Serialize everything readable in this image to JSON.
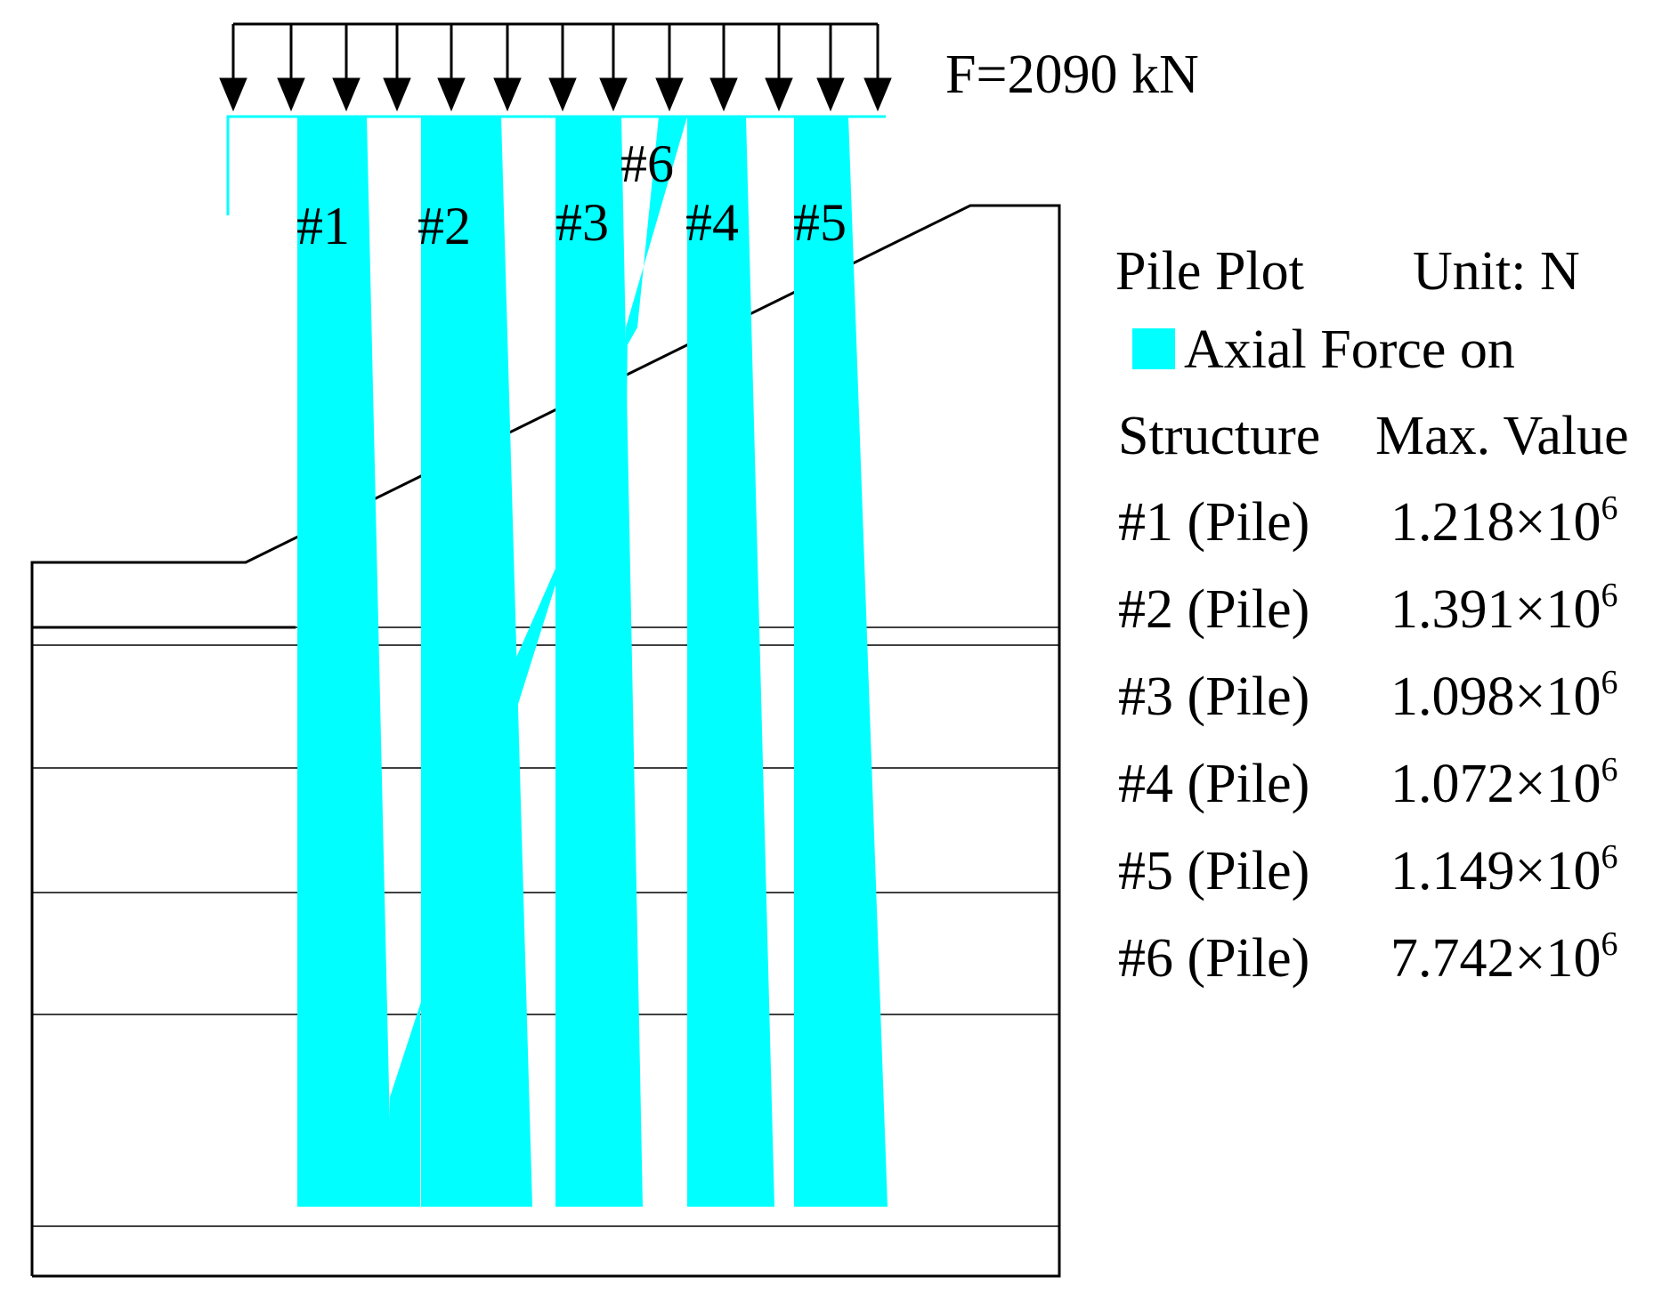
{
  "load": {
    "label": "F=2090 kN"
  },
  "piles": [
    {
      "id": "#1",
      "label": "#1"
    },
    {
      "id": "#2",
      "label": "#2"
    },
    {
      "id": "#3",
      "label": "#3"
    },
    {
      "id": "#4",
      "label": "#4"
    },
    {
      "id": "#5",
      "label": "#5"
    },
    {
      "id": "#6",
      "label": "#6"
    }
  ],
  "legend": {
    "title": "Pile Plot",
    "unit": "Unit: N",
    "item_label": "Axial Force on",
    "col_structure": "Structure",
    "col_max": "Max. Value",
    "swatch_color": "#00FFFF",
    "rows": [
      {
        "structure": "#1 (Pile)",
        "mantissa": "1.218×10",
        "exp": "6"
      },
      {
        "structure": "#2 (Pile)",
        "mantissa": "1.391×10",
        "exp": "6"
      },
      {
        "structure": "#3 (Pile)",
        "mantissa": "1.098×10",
        "exp": "6"
      },
      {
        "structure": "#4 (Pile)",
        "mantissa": "1.072×10",
        "exp": "6"
      },
      {
        "structure": "#5 (Pile)",
        "mantissa": "1.149×10",
        "exp": "6"
      },
      {
        "structure": "#6 (Pile)",
        "mantissa": "7.742×10",
        "exp": "6"
      }
    ]
  },
  "colors": {
    "axial_force": "#00FFFF",
    "lines": "#000000",
    "cap": "#00FFFF"
  }
}
